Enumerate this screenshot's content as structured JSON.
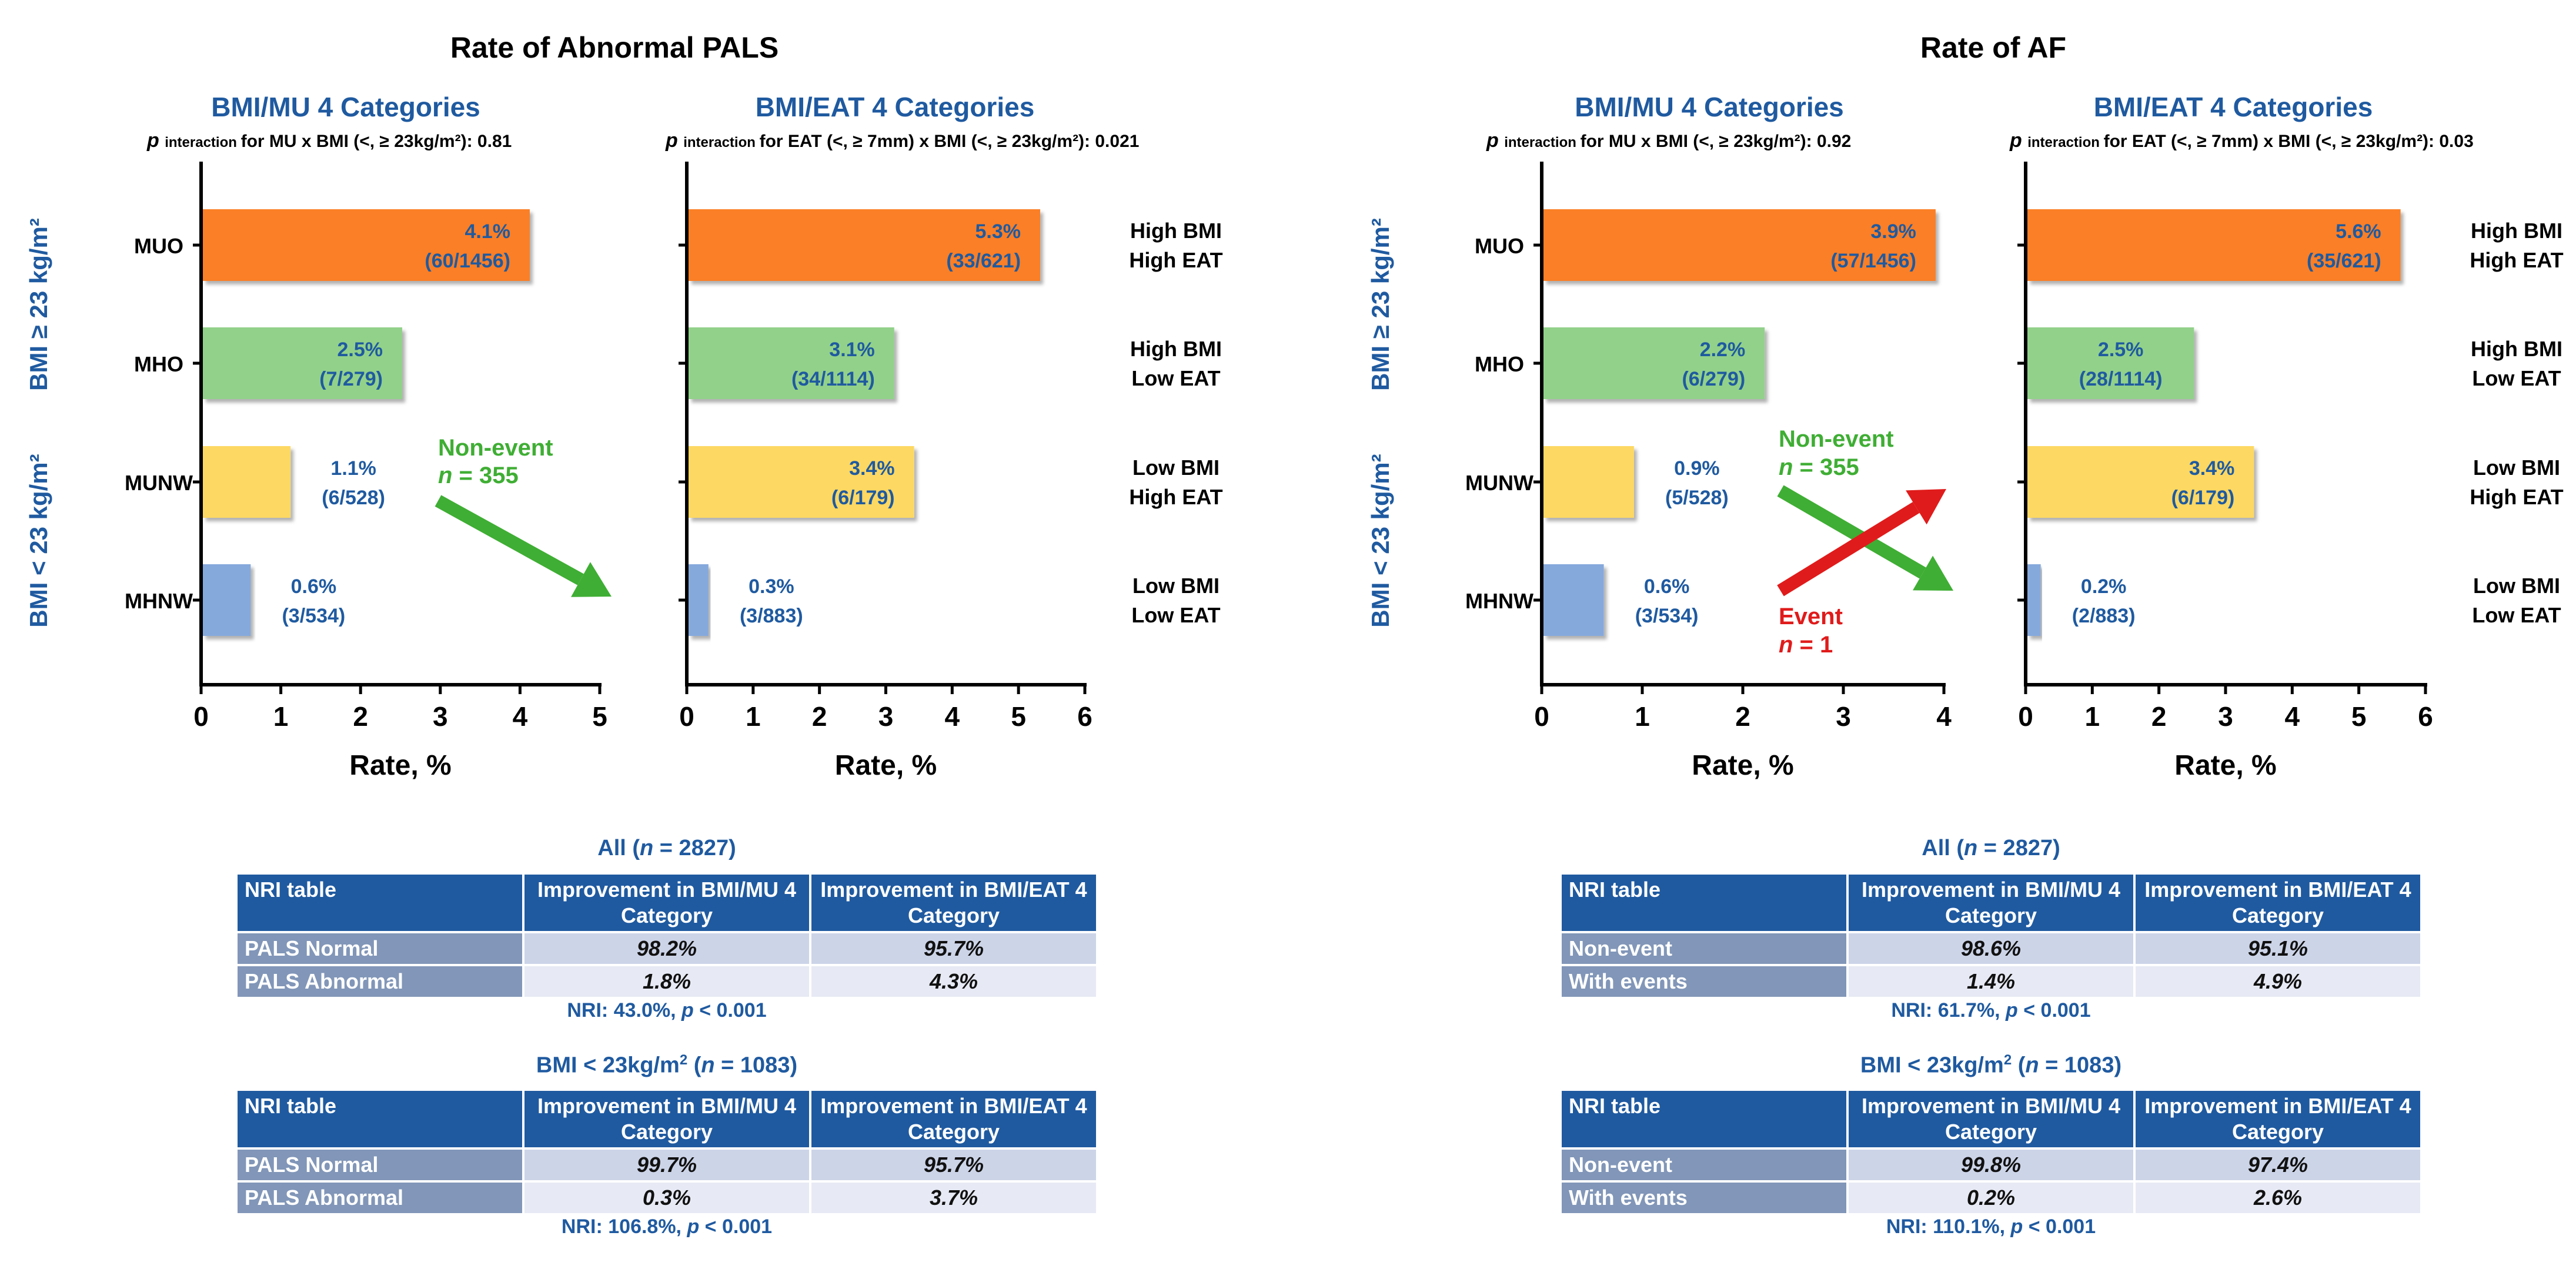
{
  "sections": [
    {
      "title": "Rate of Abnormal PALS"
    },
    {
      "title": "Rate of AF"
    }
  ],
  "left_axis_groups": {
    "high": "BMI ≥ 23 kg/m²",
    "low": "BMI < 23 kg/m²"
  },
  "chart_data": [
    {
      "type": "bar",
      "orientation": "horizontal",
      "title": "BMI/MU 4 Categories",
      "subtitle": {
        "p": "p",
        "sub": "interaction",
        "text": "for MU x BMI (<, ≥ 23kg/m²):",
        "value": "0.81"
      },
      "categories": [
        "MUO",
        "MHO",
        "MUNW",
        "MHNW"
      ],
      "values": [
        4.1,
        2.5,
        1.1,
        0.6
      ],
      "percent_labels": [
        "4.1%",
        "2.5%",
        "1.1%",
        "0.6%"
      ],
      "count_labels": [
        "(60/1456)",
        "(7/279)",
        "(6/528)",
        "(3/534)"
      ],
      "xlim": [
        0,
        5
      ],
      "xticks": [
        "0",
        "1",
        "2",
        "3",
        "4",
        "5"
      ],
      "xlabel": "Rate, %"
    },
    {
      "type": "bar",
      "orientation": "horizontal",
      "title": "BMI/EAT 4 Categories",
      "subtitle": {
        "p": "p",
        "sub": "interaction",
        "text": "for EAT (<, ≥ 7mm) x BMI (<, ≥ 23kg/m²):",
        "value": "0.021"
      },
      "categories": [
        "High BMI\nHigh EAT",
        "High BMI\nLow EAT",
        "Low BMI\nHigh EAT",
        "Low BMI\nLow EAT"
      ],
      "values": [
        5.3,
        3.1,
        3.4,
        0.3
      ],
      "percent_labels": [
        "5.3%",
        "3.1%",
        "3.4%",
        "0.3%"
      ],
      "count_labels": [
        "(33/621)",
        "(34/1114)",
        "(6/179)",
        "(3/883)"
      ],
      "xlim": [
        0,
        6
      ],
      "xticks": [
        "0",
        "1",
        "2",
        "3",
        "4",
        "5",
        "6"
      ],
      "xlabel": "Rate, %"
    },
    {
      "type": "bar",
      "orientation": "horizontal",
      "title": "BMI/MU 4 Categories",
      "subtitle": {
        "p": "p",
        "sub": "interaction",
        "text": "for MU x BMI (<, ≥ 23kg/m²):",
        "value": "0.92"
      },
      "categories": [
        "MUO",
        "MHO",
        "MUNW",
        "MHNW"
      ],
      "values": [
        3.9,
        2.2,
        0.9,
        0.6
      ],
      "percent_labels": [
        "3.9%",
        "2.2%",
        "0.9%",
        "0.6%"
      ],
      "count_labels": [
        "(57/1456)",
        "(6/279)",
        "(5/528)",
        "(3/534)"
      ],
      "xlim": [
        0,
        4
      ],
      "xticks": [
        "0",
        "1",
        "2",
        "3",
        "4"
      ],
      "xlabel": "Rate, %"
    },
    {
      "type": "bar",
      "orientation": "horizontal",
      "title": "BMI/EAT 4 Categories",
      "subtitle": {
        "p": "p",
        "sub": "interaction",
        "text": "for EAT (<, ≥ 7mm) x BMI (<, ≥ 23kg/m²):",
        "value": "0.03"
      },
      "categories": [
        "High BMI\nHigh EAT",
        "High BMI\nLow EAT",
        "Low BMI\nHigh EAT",
        "Low BMI\nLow EAT"
      ],
      "values": [
        5.6,
        2.5,
        3.4,
        0.2
      ],
      "percent_labels": [
        "5.6%",
        "2.5%",
        "3.4%",
        "0.2%"
      ],
      "count_labels": [
        "(35/621)",
        "(28/1114)",
        "(6/179)",
        "(2/883)"
      ],
      "xlim": [
        0,
        6
      ],
      "xticks": [
        "0",
        "1",
        "2",
        "3",
        "4",
        "5",
        "6"
      ],
      "xlabel": "Rate, %"
    }
  ],
  "bar_colors": [
    "#fb7f26",
    "#92d18a",
    "#fdd862",
    "#86a9dc"
  ],
  "annotations": {
    "left": {
      "nonevent_label": "Non-event",
      "nonevent_n": "n",
      "nonevent_value": "= 355"
    },
    "right": {
      "nonevent_label": "Non-event",
      "nonevent_n": "n",
      "nonevent_value": "= 355",
      "event_label": "Event",
      "event_n": "n",
      "event_value": "= 1"
    },
    "colors": {
      "nonevent": "#3fae34",
      "event": "#e01b1b"
    }
  },
  "tables": [
    {
      "title": "All (n = 2827)",
      "headers": [
        "NRI table",
        "Improvement in BMI/MU 4 Category",
        "Improvement in BMI/EAT 4 Category"
      ],
      "rows": [
        {
          "label": "PALS Normal",
          "v1": "98.2%",
          "v2": "95.7%"
        },
        {
          "label": "PALS Abnormal",
          "v1": "1.8%",
          "v2": "4.3%"
        }
      ],
      "nri": "NRI: 43.0%, p < 0.001"
    },
    {
      "title": "BMI < 23kg/m² (n = 1083)",
      "headers": [
        "NRI table",
        "Improvement in BMI/MU 4 Category",
        "Improvement in BMI/EAT 4 Category"
      ],
      "rows": [
        {
          "label": "PALS Normal",
          "v1": "99.7%",
          "v2": "95.7%"
        },
        {
          "label": "PALS Abnormal",
          "v1": "0.3%",
          "v2": "3.7%"
        }
      ],
      "nri": "NRI: 106.8%, p < 0.001"
    },
    {
      "title": "All (n = 2827)",
      "headers": [
        "NRI table",
        "Improvement in BMI/MU 4 Category",
        "Improvement in BMI/EAT 4 Category"
      ],
      "rows": [
        {
          "label": "Non-event",
          "v1": "98.6%",
          "v2": "95.1%"
        },
        {
          "label": "With events",
          "v1": "1.4%",
          "v2": "4.9%"
        }
      ],
      "nri": "NRI: 61.7%, p < 0.001"
    },
    {
      "title": "BMI < 23kg/m² (n = 1083)",
      "headers": [
        "NRI table",
        "Improvement in BMI/MU 4 Category",
        "Improvement in BMI/EAT 4 Category"
      ],
      "rows": [
        {
          "label": "Non-event",
          "v1": "99.8%",
          "v2": "97.4%"
        },
        {
          "label": "With events",
          "v1": "0.2%",
          "v2": "2.6%"
        }
      ],
      "nri": "NRI: 110.1%, p < 0.001"
    }
  ]
}
